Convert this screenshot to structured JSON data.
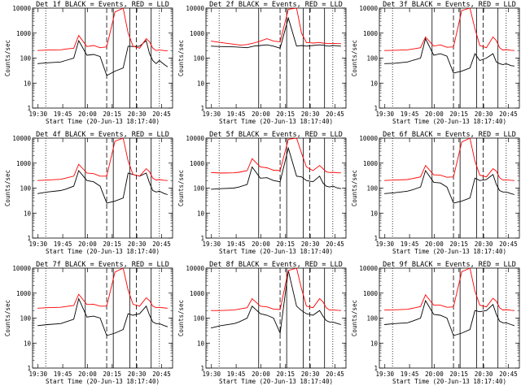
{
  "figure": {
    "time_label": "Start Time (20-Jun-13 18:17:40)",
    "ylabel": "Counts/sec",
    "title_suffix": "BLACK = Events, RED = LLD",
    "x_ticks": [
      "19:30",
      "19:45",
      "20:00",
      "20:15",
      "20:30",
      "20:45"
    ],
    "y_ticks": [
      "1",
      "10",
      "100",
      "1000",
      "10000"
    ],
    "colors": {
      "events": "#000000",
      "lld": "#ff0000",
      "axis": "#000000"
    }
  },
  "chart_data": [
    {
      "type": "line",
      "title": "Det 1f BLACK = Events, RED = LLD",
      "xlabel": "Start Time (20-Jun-13 18:17:40)",
      "ylabel": "Counts/sec",
      "yscale": "log",
      "ylim": [
        1,
        10000
      ],
      "x_time_min": [
        75,
        160
      ],
      "series": [
        {
          "name": "Events",
          "color": "#000000",
          "x": [
            78,
            84,
            92,
            95,
            100,
            103,
            108,
            112,
            116,
            120,
            125,
            130,
            133,
            136,
            140,
            144,
            146,
            148,
            150,
            152,
            155,
            157
          ],
          "values": [
            60,
            65,
            70,
            80,
            100,
            500,
            130,
            140,
            115,
            20,
            30,
            40,
            300,
            290,
            300,
            500,
            150,
            80,
            60,
            80,
            55,
            45
          ]
        },
        {
          "name": "LLD",
          "color": "#ff0000",
          "x": [
            78,
            84,
            92,
            95,
            100,
            103,
            108,
            112,
            116,
            120,
            125,
            130,
            133,
            136,
            140,
            144,
            146,
            148,
            150,
            152,
            155,
            157
          ],
          "values": [
            200,
            210,
            215,
            230,
            250,
            800,
            290,
            320,
            260,
            280,
            7000,
            10000,
            1000,
            300,
            250,
            600,
            450,
            250,
            200,
            210,
            200,
            195
          ]
        }
      ]
    },
    {
      "type": "line",
      "title": "Det 2f BLACK = Events, RED = LLD",
      "xlabel": "Start Time (20-Jun-13 18:17:40)",
      "ylabel": "Counts/sec",
      "yscale": "log",
      "ylim": [
        1,
        10000
      ],
      "x_time_min": [
        75,
        160
      ],
      "series": [
        {
          "name": "Events",
          "color": "#000000",
          "x": [
            78,
            84,
            92,
            96,
            100,
            104,
            108,
            112,
            116,
            120,
            125,
            130,
            133,
            136,
            140,
            144,
            146,
            148,
            150,
            152,
            155,
            157
          ],
          "values": [
            300,
            290,
            280,
            270,
            260,
            300,
            320,
            340,
            300,
            250,
            4000,
            300,
            320,
            300,
            320,
            340,
            330,
            310,
            300,
            320,
            310,
            300
          ]
        },
        {
          "name": "LLD",
          "color": "#ff0000",
          "x": [
            78,
            84,
            92,
            96,
            100,
            104,
            108,
            112,
            116,
            120,
            125,
            130,
            133,
            136,
            140,
            144,
            146,
            148,
            150,
            152,
            155,
            157
          ],
          "values": [
            480,
            420,
            360,
            330,
            350,
            400,
            480,
            600,
            480,
            450,
            9000,
            10000,
            1000,
            420,
            400,
            420,
            400,
            390,
            380,
            390,
            380,
            380
          ]
        }
      ]
    },
    {
      "type": "line",
      "title": "Det 3f BLACK = Events, RED = LLD",
      "xlabel": "Start Time (20-Jun-13 18:17:40)",
      "ylabel": "Counts/sec",
      "yscale": "log",
      "ylim": [
        1,
        10000
      ],
      "x_time_min": [
        75,
        160
      ],
      "series": [
        {
          "name": "Events",
          "color": "#000000",
          "x": [
            78,
            84,
            92,
            95,
            100,
            103,
            108,
            112,
            116,
            120,
            125,
            130,
            133,
            136,
            140,
            144,
            146,
            148,
            150,
            152,
            155,
            157
          ],
          "values": [
            60,
            62,
            70,
            80,
            100,
            600,
            130,
            150,
            120,
            25,
            30,
            40,
            150,
            80,
            100,
            150,
            70,
            60,
            55,
            60,
            50,
            48
          ]
        },
        {
          "name": "LLD",
          "color": "#ff0000",
          "x": [
            78,
            84,
            92,
            95,
            100,
            103,
            108,
            112,
            116,
            120,
            125,
            130,
            133,
            136,
            140,
            144,
            146,
            148,
            150,
            152,
            155,
            157
          ],
          "values": [
            200,
            205,
            215,
            230,
            260,
            700,
            300,
            340,
            270,
            280,
            8000,
            10000,
            1500,
            320,
            260,
            700,
            500,
            260,
            210,
            220,
            205,
            200
          ]
        }
      ]
    },
    {
      "type": "line",
      "title": "Det 4f BLACK = Events, RED = LLD",
      "xlabel": "Start Time (20-Jun-13 18:17:40)",
      "ylabel": "Counts/sec",
      "yscale": "log",
      "ylim": [
        1,
        10000
      ],
      "x_time_min": [
        75,
        160
      ],
      "series": [
        {
          "name": "Events",
          "color": "#000000",
          "x": [
            78,
            84,
            92,
            95,
            100,
            103,
            108,
            112,
            116,
            120,
            125,
            130,
            133,
            136,
            140,
            144,
            146,
            148,
            150,
            152,
            155,
            157
          ],
          "values": [
            60,
            70,
            80,
            90,
            120,
            500,
            200,
            180,
            120,
            25,
            30,
            40,
            400,
            350,
            300,
            400,
            160,
            80,
            70,
            75,
            60,
            55
          ]
        },
        {
          "name": "LLD",
          "color": "#ff0000",
          "x": [
            78,
            84,
            92,
            95,
            100,
            103,
            108,
            112,
            116,
            120,
            125,
            130,
            133,
            136,
            140,
            144,
            146,
            148,
            150,
            152,
            155,
            157
          ],
          "values": [
            200,
            210,
            225,
            250,
            300,
            900,
            400,
            380,
            300,
            300,
            7500,
            10000,
            1200,
            350,
            300,
            600,
            450,
            250,
            210,
            220,
            205,
            200
          ]
        }
      ]
    },
    {
      "type": "line",
      "title": "Det 5f BLACK = Events, RED = LLD",
      "xlabel": "Start Time (20-Jun-13 18:17:40)",
      "ylabel": "Counts/sec",
      "yscale": "log",
      "ylim": [
        1,
        10000
      ],
      "x_time_min": [
        75,
        160
      ],
      "series": [
        {
          "name": "Events",
          "color": "#000000",
          "x": [
            78,
            84,
            92,
            95,
            100,
            103,
            108,
            112,
            116,
            120,
            125,
            130,
            133,
            136,
            140,
            144,
            146,
            148,
            150,
            152,
            155,
            157
          ],
          "values": [
            90,
            95,
            100,
            110,
            140,
            700,
            250,
            260,
            200,
            180,
            4000,
            300,
            280,
            200,
            180,
            300,
            160,
            120,
            110,
            120,
            100,
            95
          ]
        },
        {
          "name": "LLD",
          "color": "#ff0000",
          "x": [
            78,
            84,
            92,
            95,
            100,
            103,
            108,
            112,
            116,
            120,
            125,
            130,
            133,
            136,
            140,
            144,
            146,
            148,
            150,
            152,
            155,
            157
          ],
          "values": [
            420,
            400,
            410,
            430,
            500,
            1500,
            700,
            650,
            520,
            500,
            9000,
            10000,
            2500,
            700,
            500,
            800,
            600,
            450,
            420,
            430,
            410,
            410
          ]
        }
      ]
    },
    {
      "type": "line",
      "title": "Det 6f BLACK = Events, RED = LLD",
      "xlabel": "Start Time (20-Jun-13 18:17:40)",
      "ylabel": "Counts/sec",
      "yscale": "log",
      "ylim": [
        1,
        10000
      ],
      "x_time_min": [
        75,
        160
      ],
      "series": [
        {
          "name": "Events",
          "color": "#000000",
          "x": [
            78,
            84,
            92,
            95,
            100,
            103,
            108,
            112,
            116,
            120,
            125,
            130,
            133,
            136,
            140,
            144,
            146,
            148,
            150,
            152,
            155,
            157
          ],
          "values": [
            60,
            65,
            75,
            85,
            110,
            500,
            170,
            160,
            110,
            25,
            30,
            40,
            250,
            200,
            220,
            350,
            140,
            80,
            70,
            70,
            60,
            55
          ]
        },
        {
          "name": "LLD",
          "color": "#ff0000",
          "x": [
            78,
            84,
            92,
            95,
            100,
            103,
            108,
            112,
            116,
            120,
            125,
            130,
            133,
            136,
            140,
            144,
            146,
            148,
            150,
            152,
            155,
            157
          ],
          "values": [
            200,
            210,
            220,
            240,
            280,
            800,
            340,
            330,
            270,
            280,
            7000,
            10000,
            1200,
            330,
            280,
            600,
            480,
            260,
            210,
            215,
            205,
            200
          ]
        }
      ]
    },
    {
      "type": "line",
      "title": "Det 7f BLACK = Events, RED = LLD",
      "xlabel": "Start Time (20-Jun-13 18:17:40)",
      "ylabel": "Counts/sec",
      "yscale": "log",
      "ylim": [
        1,
        10000
      ],
      "x_time_min": [
        75,
        160
      ],
      "series": [
        {
          "name": "Events",
          "color": "#000000",
          "x": [
            78,
            84,
            92,
            95,
            100,
            103,
            108,
            112,
            116,
            120,
            125,
            130,
            133,
            136,
            140,
            144,
            146,
            148,
            150,
            152,
            155,
            157
          ],
          "values": [
            50,
            55,
            60,
            70,
            90,
            600,
            110,
            120,
            100,
            20,
            25,
            35,
            150,
            130,
            150,
            300,
            130,
            70,
            60,
            60,
            50,
            45
          ]
        },
        {
          "name": "LLD",
          "color": "#ff0000",
          "x": [
            78,
            84,
            92,
            95,
            100,
            103,
            108,
            112,
            116,
            120,
            125,
            130,
            133,
            136,
            140,
            144,
            146,
            148,
            150,
            152,
            155,
            157
          ],
          "values": [
            250,
            260,
            270,
            290,
            320,
            900,
            350,
            360,
            300,
            300,
            7000,
            10000,
            1300,
            360,
            300,
            650,
            500,
            300,
            260,
            270,
            255,
            250
          ]
        }
      ]
    },
    {
      "type": "line",
      "title": "Det 8f BLACK = Events, RED = LLD",
      "xlabel": "Start Time (20-Jun-13 18:17:40)",
      "ylabel": "Counts/sec",
      "yscale": "log",
      "ylim": [
        1,
        10000
      ],
      "x_time_min": [
        75,
        160
      ],
      "series": [
        {
          "name": "Events",
          "color": "#000000",
          "x": [
            78,
            84,
            92,
            95,
            100,
            103,
            108,
            112,
            116,
            120,
            125,
            130,
            133,
            136,
            140,
            144,
            146,
            148,
            150,
            152,
            155,
            157
          ],
          "values": [
            40,
            50,
            60,
            70,
            100,
            300,
            150,
            130,
            100,
            25,
            8000,
            300,
            200,
            150,
            130,
            200,
            120,
            80,
            70,
            70,
            60,
            55
          ]
        },
        {
          "name": "LLD",
          "color": "#ff0000",
          "x": [
            78,
            84,
            92,
            95,
            100,
            103,
            108,
            112,
            116,
            120,
            125,
            130,
            133,
            136,
            140,
            144,
            146,
            148,
            150,
            152,
            155,
            157
          ],
          "values": [
            200,
            200,
            210,
            230,
            260,
            600,
            300,
            280,
            230,
            220,
            8000,
            10000,
            1500,
            300,
            260,
            600,
            450,
            260,
            210,
            215,
            205,
            200
          ]
        }
      ]
    },
    {
      "type": "line",
      "title": "Det 9f BLACK = Events, RED = LLD",
      "xlabel": "Start Time (20-Jun-13 18:17:40)",
      "ylabel": "Counts/sec",
      "yscale": "log",
      "ylim": [
        1,
        10000
      ],
      "x_time_min": [
        75,
        160
      ],
      "series": [
        {
          "name": "Events",
          "color": "#000000",
          "x": [
            78,
            84,
            92,
            95,
            100,
            103,
            108,
            112,
            116,
            120,
            125,
            130,
            133,
            136,
            140,
            144,
            146,
            148,
            150,
            152,
            155,
            157
          ],
          "values": [
            55,
            60,
            65,
            75,
            100,
            500,
            140,
            130,
            100,
            20,
            25,
            35,
            200,
            180,
            200,
            350,
            140,
            75,
            65,
            65,
            55,
            50
          ]
        },
        {
          "name": "LLD",
          "color": "#ff0000",
          "x": [
            78,
            84,
            92,
            95,
            100,
            103,
            108,
            112,
            116,
            120,
            125,
            130,
            133,
            136,
            140,
            144,
            146,
            148,
            150,
            152,
            155,
            157
          ],
          "values": [
            210,
            215,
            225,
            245,
            290,
            850,
            330,
            330,
            270,
            280,
            7200,
            10000,
            1200,
            330,
            280,
            620,
            480,
            260,
            210,
            220,
            205,
            200
          ]
        }
      ]
    }
  ]
}
